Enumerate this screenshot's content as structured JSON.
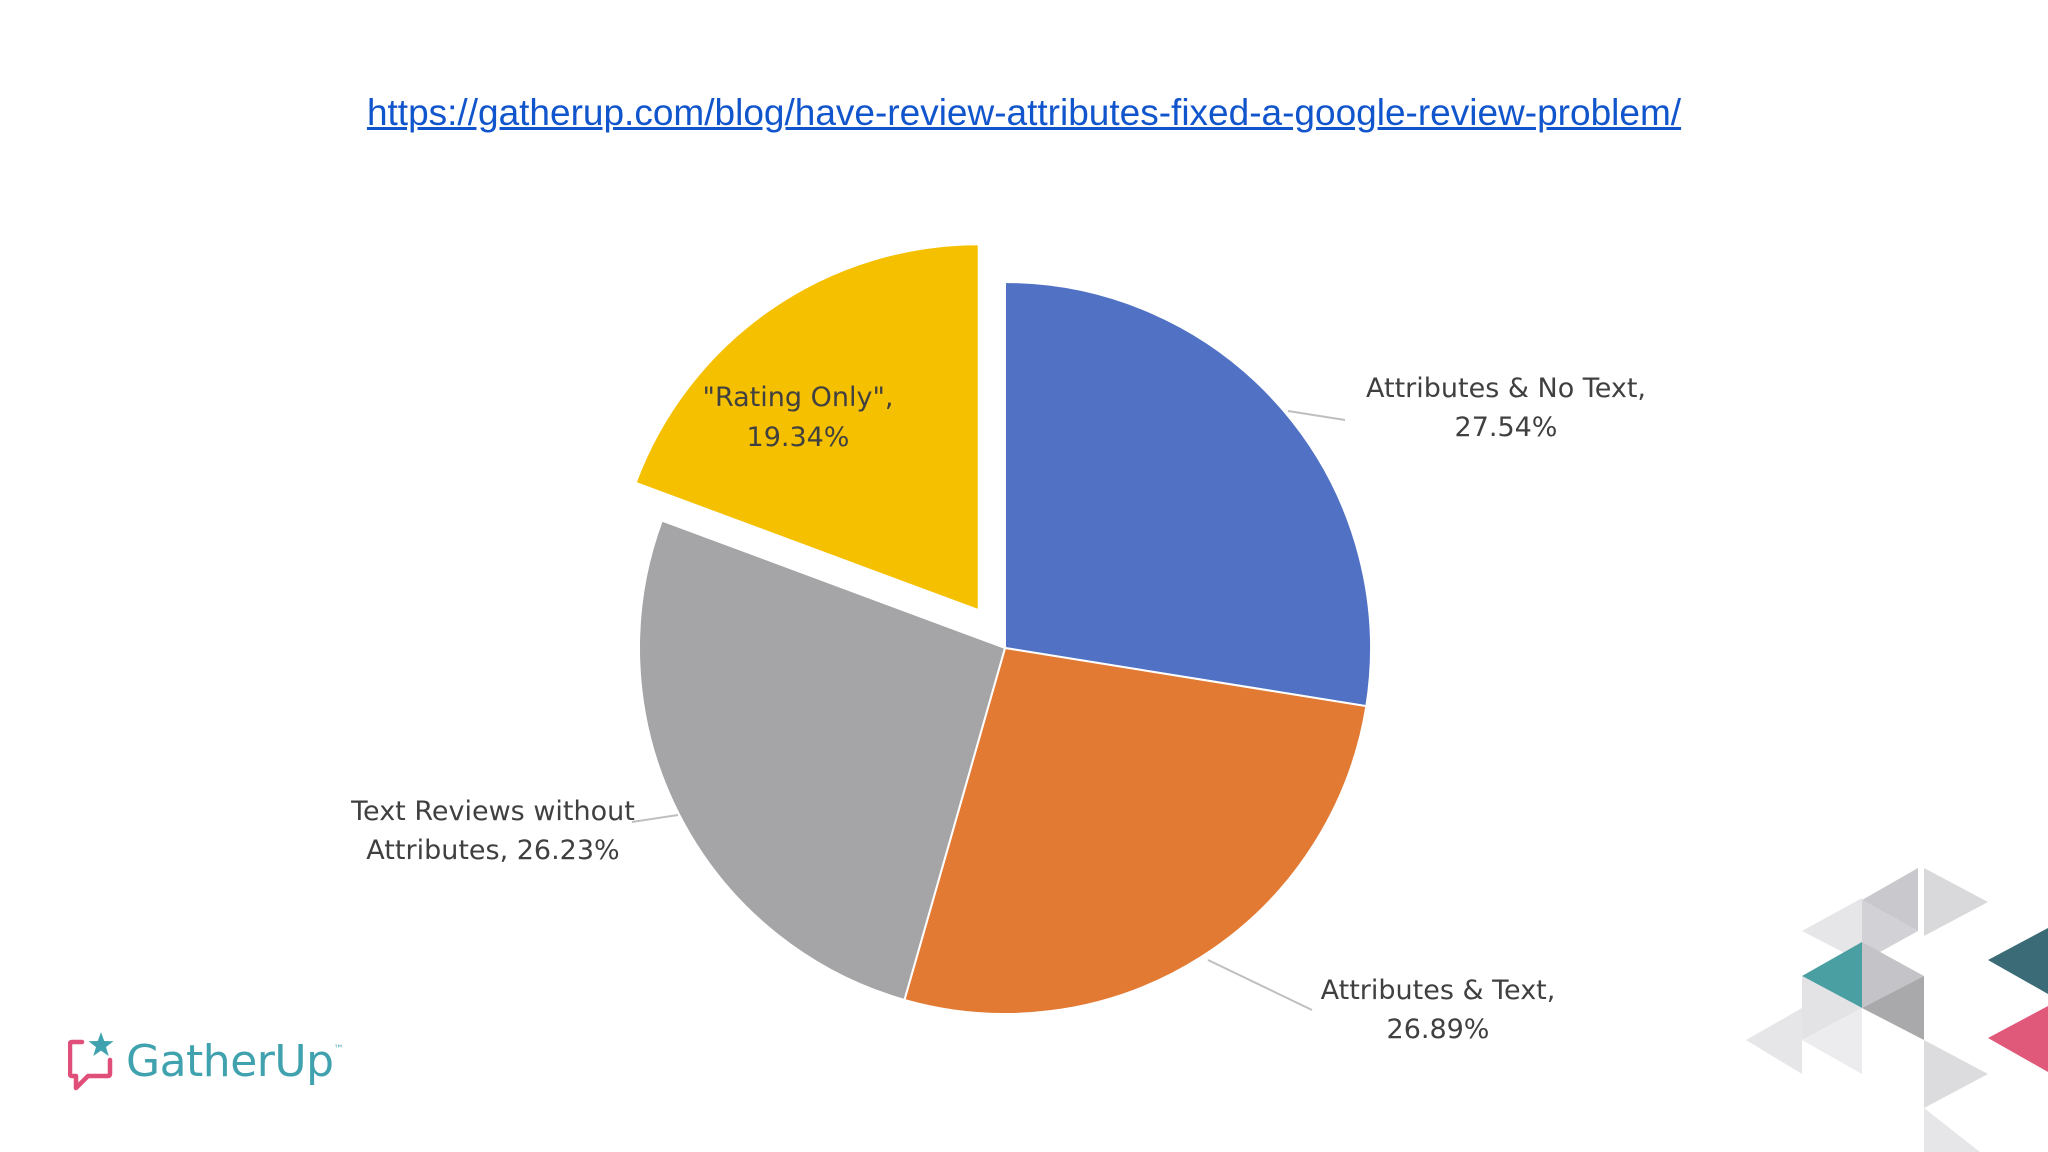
{
  "header": {
    "source_url": "https://gatherup.com/blog/have-review-attributes-fixed-a-google-review-problem/"
  },
  "brand": {
    "name": "GatherUp",
    "trademark": "™",
    "icon": "chat-bubble-star-icon",
    "colors": {
      "text": "#3fa2ae",
      "bubble": "#e04f79",
      "star": "#3fa2ae"
    }
  },
  "chart_data": {
    "type": "pie",
    "title": "",
    "start": "12 o'clock, clockwise",
    "exploded": "\"Rating Only\"",
    "slices": [
      {
        "label": "Attributes & No Text,",
        "value_label": "27.54%",
        "value": 27.54,
        "color": "#5172c4"
      },
      {
        "label": "Attributes & Text,",
        "value_label": "26.89%",
        "value": 26.89,
        "color": "#e27a33"
      },
      {
        "label_lines": [
          "Text Reviews without",
          "Attributes, 26.23%"
        ],
        "value": 26.23,
        "color": "#a5a5a7"
      },
      {
        "label": "\"Rating Only\",",
        "value_label": "19.34%",
        "value": 19.34,
        "color": "#f5c000"
      }
    ]
  },
  "decoration": {
    "colors": [
      "#d9d9dc",
      "#c4c4c8",
      "#4a9fa3",
      "#3a6b76",
      "#e0587a",
      "#a9a9ab"
    ]
  }
}
